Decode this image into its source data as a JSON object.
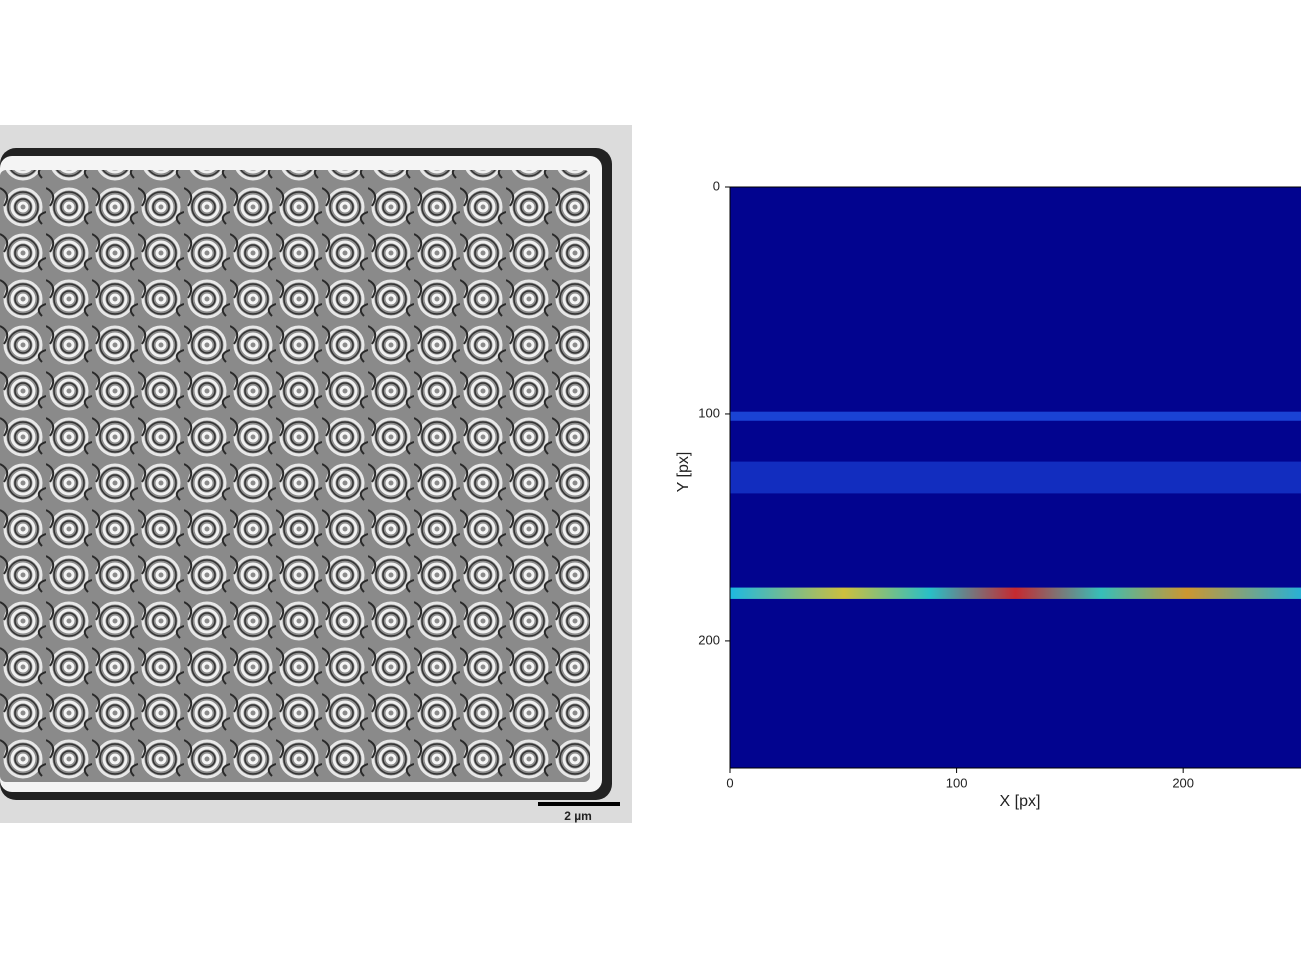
{
  "scale_bar": {
    "label": "2 µm"
  },
  "chart_data": {
    "type": "heatmap",
    "xlabel": "X [px]",
    "ylabel": "Y [px]",
    "xlim": [
      0,
      252
    ],
    "ylim": [
      0,
      256
    ],
    "xticks": [
      0,
      100,
      200
    ],
    "yticks": [
      0,
      100,
      200
    ],
    "background": "#02048f",
    "bands": [
      {
        "y": 101,
        "width": 4,
        "color": "#1f4fe0"
      },
      {
        "y": 128,
        "width": 14,
        "color": "#1535c8"
      },
      {
        "y": 179,
        "width": 5,
        "color": "#22d8f0"
      }
    ]
  }
}
